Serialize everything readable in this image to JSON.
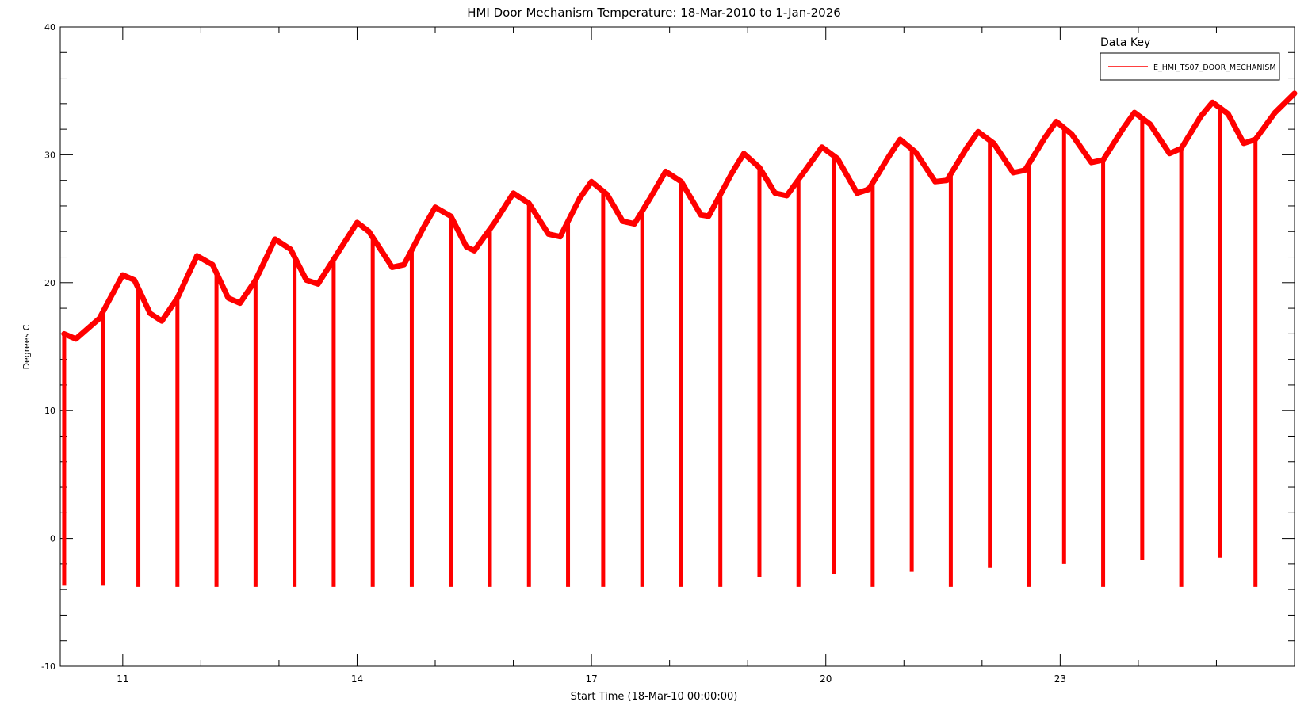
{
  "chart_data": {
    "type": "line",
    "title": "HMI Door Mechanism Temperature: 18-Mar-2010 to 1-Jan-2026",
    "xlabel": "Start Time (18-Mar-10 00:00:00)",
    "ylabel": "Degrees C",
    "xlim": [
      10.2,
      26.0
    ],
    "ylim": [
      -10,
      40
    ],
    "x_ticks": [
      11,
      14,
      17,
      20,
      23
    ],
    "y_ticks": [
      -10,
      0,
      10,
      20,
      30,
      40
    ],
    "grid": false,
    "legend_title": "Data Key",
    "legend_position": "top-right",
    "series": [
      {
        "name": "E_HMI_TS07_DOOR_MECHANISM",
        "color": "#ff0000",
        "baseline": [
          [
            10.25,
            16.0
          ],
          [
            10.4,
            15.6
          ],
          [
            10.7,
            17.2
          ],
          [
            11.0,
            20.6
          ],
          [
            11.15,
            20.2
          ],
          [
            11.35,
            17.6
          ],
          [
            11.5,
            17.0
          ],
          [
            11.7,
            18.8
          ],
          [
            11.95,
            22.1
          ],
          [
            12.15,
            21.4
          ],
          [
            12.35,
            18.8
          ],
          [
            12.5,
            18.4
          ],
          [
            12.7,
            20.2
          ],
          [
            12.95,
            23.4
          ],
          [
            13.15,
            22.6
          ],
          [
            13.35,
            20.2
          ],
          [
            13.5,
            19.9
          ],
          [
            13.75,
            22.3
          ],
          [
            14.0,
            24.7
          ],
          [
            14.15,
            24.0
          ],
          [
            14.45,
            21.2
          ],
          [
            14.6,
            21.4
          ],
          [
            14.85,
            24.3
          ],
          [
            15.0,
            25.9
          ],
          [
            15.2,
            25.2
          ],
          [
            15.4,
            22.8
          ],
          [
            15.5,
            22.5
          ],
          [
            15.75,
            24.6
          ],
          [
            16.0,
            27.0
          ],
          [
            16.2,
            26.2
          ],
          [
            16.45,
            23.8
          ],
          [
            16.6,
            23.6
          ],
          [
            16.85,
            26.6
          ],
          [
            17.0,
            27.9
          ],
          [
            17.2,
            26.9
          ],
          [
            17.4,
            24.8
          ],
          [
            17.55,
            24.6
          ],
          [
            17.75,
            26.6
          ],
          [
            17.95,
            28.7
          ],
          [
            18.15,
            27.9
          ],
          [
            18.4,
            25.3
          ],
          [
            18.5,
            25.2
          ],
          [
            18.8,
            28.6
          ],
          [
            18.95,
            30.1
          ],
          [
            19.15,
            29.0
          ],
          [
            19.35,
            27.0
          ],
          [
            19.5,
            26.8
          ],
          [
            19.75,
            28.9
          ],
          [
            19.95,
            30.6
          ],
          [
            20.15,
            29.7
          ],
          [
            20.4,
            27.0
          ],
          [
            20.55,
            27.3
          ],
          [
            20.8,
            29.8
          ],
          [
            20.95,
            31.2
          ],
          [
            21.15,
            30.2
          ],
          [
            21.4,
            27.9
          ],
          [
            21.55,
            28.0
          ],
          [
            21.8,
            30.5
          ],
          [
            21.95,
            31.8
          ],
          [
            22.15,
            30.9
          ],
          [
            22.4,
            28.6
          ],
          [
            22.55,
            28.8
          ],
          [
            22.8,
            31.3
          ],
          [
            22.95,
            32.6
          ],
          [
            23.15,
            31.6
          ],
          [
            23.4,
            29.4
          ],
          [
            23.55,
            29.6
          ],
          [
            23.8,
            32.0
          ],
          [
            23.95,
            33.3
          ],
          [
            24.15,
            32.4
          ],
          [
            24.4,
            30.1
          ],
          [
            24.55,
            30.5
          ],
          [
            24.8,
            33.0
          ],
          [
            24.95,
            34.1
          ],
          [
            25.15,
            33.2
          ],
          [
            25.35,
            30.9
          ],
          [
            25.5,
            31.2
          ],
          [
            25.75,
            33.3
          ],
          [
            26.0,
            34.8
          ]
        ],
        "dips": [
          [
            10.25,
            -3.7
          ],
          [
            10.75,
            -3.7
          ],
          [
            11.2,
            -3.8
          ],
          [
            11.7,
            -3.8
          ],
          [
            12.2,
            -3.8
          ],
          [
            12.7,
            -3.8
          ],
          [
            13.2,
            -3.8
          ],
          [
            13.7,
            -3.8
          ],
          [
            14.2,
            -3.8
          ],
          [
            14.7,
            -3.8
          ],
          [
            15.2,
            -3.8
          ],
          [
            15.7,
            -3.8
          ],
          [
            16.2,
            -3.8
          ],
          [
            16.7,
            -3.8
          ],
          [
            17.15,
            -3.8
          ],
          [
            17.65,
            -3.8
          ],
          [
            18.15,
            -3.8
          ],
          [
            18.65,
            -3.8
          ],
          [
            19.15,
            -3.0
          ],
          [
            19.65,
            -3.8
          ],
          [
            20.1,
            -2.8
          ],
          [
            20.6,
            -3.8
          ],
          [
            21.1,
            -2.6
          ],
          [
            21.6,
            -3.8
          ],
          [
            22.1,
            -2.3
          ],
          [
            22.6,
            -3.8
          ],
          [
            23.05,
            -2.0
          ],
          [
            23.55,
            -3.8
          ],
          [
            24.05,
            -1.7
          ],
          [
            24.55,
            -3.8
          ],
          [
            25.05,
            -1.5
          ],
          [
            25.5,
            -3.8
          ]
        ]
      }
    ]
  }
}
